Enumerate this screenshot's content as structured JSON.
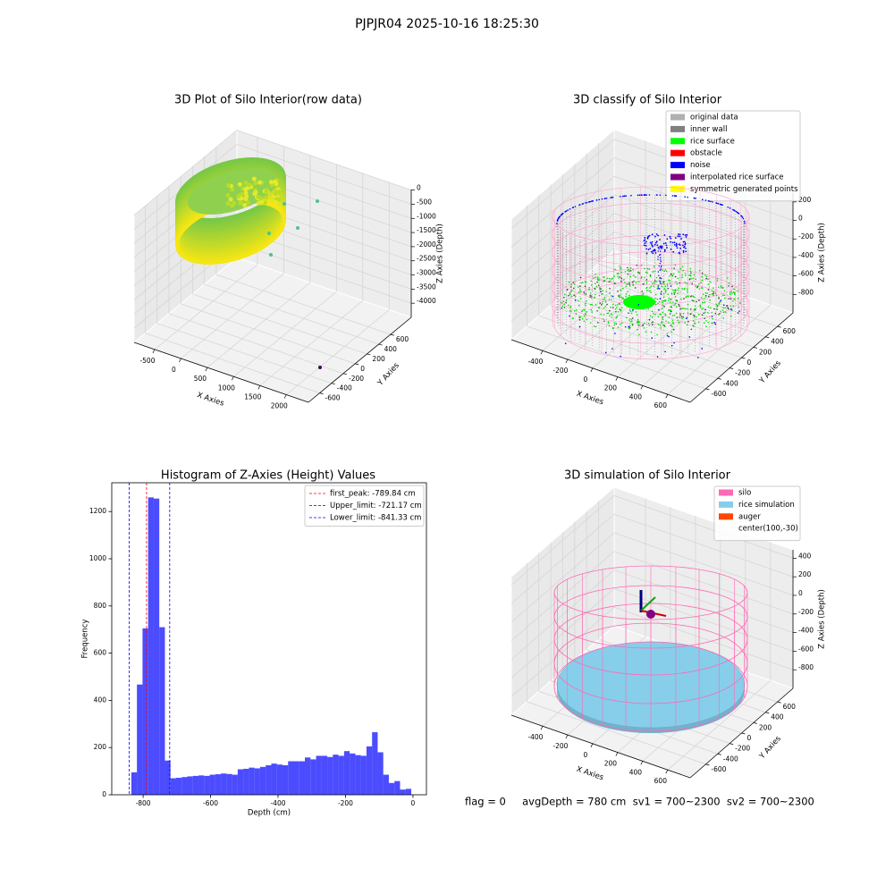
{
  "title": "PJPJR04 2025-10-16 18:25:30",
  "footer": "flag = 0     avgDepth = 780 cm  sv1 = 700~2300  sv2 = 700~2300",
  "chart_data": [
    {
      "type": "scatter3d",
      "title": "3D Plot of Silo Interior(row data)",
      "xlabel": "X Axies",
      "ylabel": "Y Axies",
      "zlabel": "Z Axies (Depth)",
      "xlim": [
        -890,
        2420
      ],
      "ylim": [
        -790,
        950
      ],
      "zlim": [
        -4500,
        20
      ],
      "xticks": [
        -500,
        0,
        500,
        1000,
        1500,
        2000
      ],
      "yticks": [
        -600,
        -400,
        -200,
        0,
        200,
        400,
        600
      ],
      "zticks": [
        -4000,
        -3500,
        -3000,
        -2500,
        -2000,
        -1500,
        -1000,
        -500,
        0
      ],
      "grid": true
    },
    {
      "type": "scatter3d",
      "title": "3D classify of Silo Interior",
      "xlabel": "X Axies",
      "ylabel": "Y Axies",
      "zlabel": "Z Axies (Depth)",
      "xlim": [
        -650,
        780
      ],
      "ylim": [
        -860,
        860
      ],
      "zlim": [
        -1000,
        305
      ],
      "xticks": [
        -400,
        -200,
        0,
        200,
        400,
        600
      ],
      "yticks": [
        -600,
        -400,
        -200,
        0,
        200,
        400,
        600
      ],
      "zticks": [
        -800,
        -600,
        -400,
        -200,
        0,
        200
      ],
      "grid": true,
      "legend_position": "upper right",
      "legend": [
        {
          "name": "original data",
          "color": "#b0b0b0"
        },
        {
          "name": "inner wall",
          "color": "#808080"
        },
        {
          "name": "rice surface",
          "color": "#00ff00"
        },
        {
          "name": "obstacle",
          "color": "#ff0000"
        },
        {
          "name": "noise",
          "color": "#0000ff"
        },
        {
          "name": "interpolated rice surface",
          "color": "#800080"
        },
        {
          "name": "symmetric generated points",
          "color": "#ffff00"
        }
      ]
    },
    {
      "type": "histogram",
      "title": "Histogram of Z-Axies (Height) Values",
      "xlabel": "Depth (cm)",
      "ylabel": "Frequency",
      "color": "#0000ff",
      "alpha": 0.7,
      "bins": [
        -835,
        -818.4,
        -801.8,
        -785.2,
        -768.6,
        -752,
        -735.4,
        -718.8,
        -702.2,
        -685.6,
        -669,
        -652.4,
        -635.8,
        -619.2,
        -602.6,
        -586,
        -569.4,
        -552.8,
        -536.2,
        -519.6,
        -503,
        -486.4,
        -469.8,
        -453.2,
        -436.6,
        -420,
        -403.4,
        -386.8,
        -370.2,
        -353.6,
        -337,
        -320.4,
        -303.8,
        -287.2,
        -270.6,
        -254,
        -237.4,
        -220.8,
        -204.2,
        -187.6,
        -171,
        -154.4,
        -137.8,
        -121.2,
        -104.6,
        -88,
        -71.4,
        -54.8,
        -38.2,
        -21.6,
        -5
      ],
      "counts": [
        95,
        467,
        705,
        1260,
        1255,
        710,
        145,
        70,
        72,
        75,
        78,
        80,
        82,
        80,
        85,
        87,
        90,
        88,
        85,
        108,
        110,
        115,
        112,
        118,
        125,
        132,
        128,
        125,
        142,
        142,
        142,
        158,
        150,
        165,
        165,
        160,
        170,
        165,
        185,
        175,
        168,
        165,
        205,
        265,
        180,
        85,
        50,
        58,
        22,
        25
      ],
      "xlim": [
        -893,
        40
      ],
      "ylim": [
        0,
        1322
      ],
      "xticks": [
        -800,
        -600,
        -400,
        -200,
        0
      ],
      "yticks": [
        0,
        200,
        400,
        600,
        800,
        1000,
        1200
      ],
      "legend_position": "upper right",
      "lines": [
        {
          "value": -789.84,
          "label": "first_peak: -789.84 cm",
          "color": "#ff0000"
        },
        {
          "value": -721.17,
          "label": "Upper_limit: -721.17 cm",
          "color": "#0000ff"
        },
        {
          "value": -841.33,
          "label": "Lower_limit: -841.33 cm",
          "color": "#0000ff"
        }
      ]
    },
    {
      "type": "simulation3d",
      "title": "3D simulation of Silo Interior",
      "xlabel": "X Axies",
      "ylabel": "Y Axies",
      "zlabel": "Z Axies (Depth)",
      "xlim": [
        -650,
        780
      ],
      "ylim": [
        -860,
        860
      ],
      "zlim": [
        -1000,
        490
      ],
      "xticks": [
        -400,
        -200,
        0,
        200,
        400,
        600
      ],
      "yticks": [
        -600,
        -400,
        -200,
        0,
        200,
        400,
        600
      ],
      "zticks": [
        -800,
        -600,
        -400,
        -200,
        0,
        200,
        400
      ],
      "grid": true,
      "legend_position": "upper right",
      "legend": [
        {
          "name": "silo",
          "color": "#ff69b4"
        },
        {
          "name": "rice simulation",
          "color": "#87ceeb"
        },
        {
          "name": "auger",
          "color": "#ff4500"
        },
        {
          "name": "center(100,-30)"
        }
      ]
    }
  ]
}
